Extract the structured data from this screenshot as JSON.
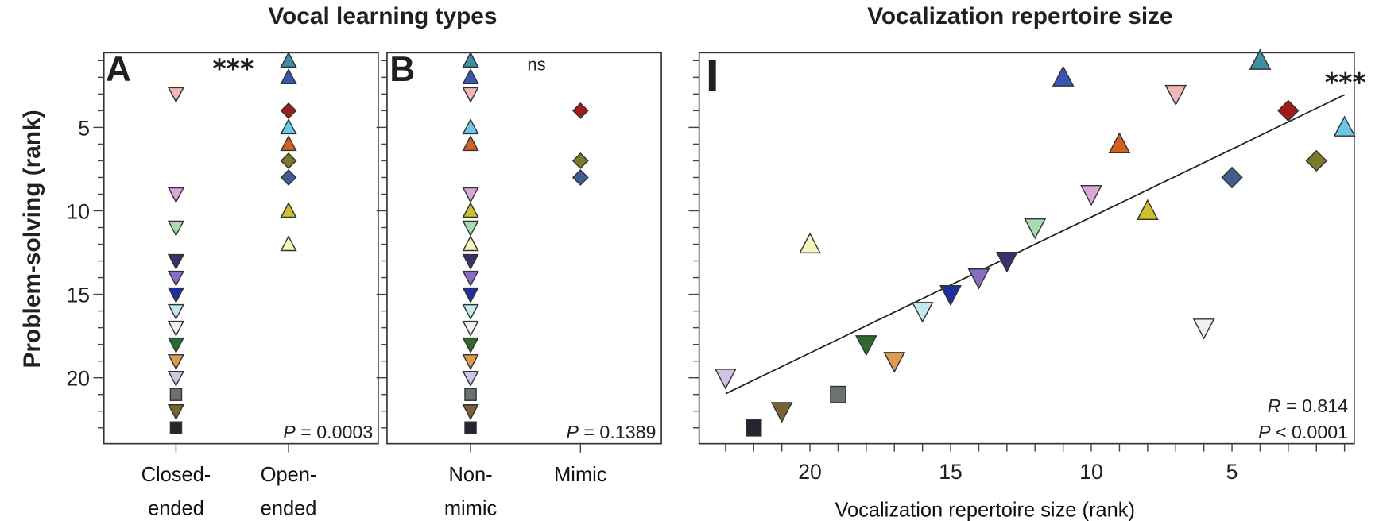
{
  "titles": {
    "left": "Vocal learning types",
    "right": "Vocalization repertoire size"
  },
  "y_axis_label": "Problem-solving (rank)",
  "chart_data": [
    {
      "panel": "A",
      "type": "scatter",
      "title": "Vocal learning types",
      "categories": [
        "Closed-ended",
        "Open-ended"
      ],
      "category_lines": [
        [
          "Closed-",
          "ended"
        ],
        [
          "Open-",
          "ended"
        ]
      ],
      "group_field": "vocal_type",
      "ylabel": "Problem-solving (rank)",
      "ylim": [
        1,
        23
      ],
      "y_reversed": true,
      "yticks": [
        5,
        10,
        15,
        20
      ],
      "significance": "***",
      "stat_label": "P",
      "stat_text": " = 0.0003"
    },
    {
      "panel": "B",
      "type": "scatter",
      "categories": [
        "Non-mimic",
        "Mimic"
      ],
      "category_lines": [
        [
          "Non-",
          "mimic"
        ],
        [
          "Mimic"
        ]
      ],
      "group_field": "mimicry",
      "ylim": [
        1,
        23
      ],
      "y_reversed": true,
      "significance": "ns",
      "stat_label": "P",
      "stat_text": " = 0.1389"
    },
    {
      "panel": "I",
      "type": "scatter",
      "title": "Vocalization repertoire size",
      "xlabel": "Vocalization repertoire size (rank)",
      "xlim": [
        23,
        1
      ],
      "x_reversed": true,
      "xticks": [
        20,
        15,
        10,
        5
      ],
      "ylim": [
        1,
        23
      ],
      "y_reversed": true,
      "trendline": "linear",
      "significance": "***",
      "r_label": "R",
      "r_text": " = 0.814",
      "p_label": "P",
      "p_text": " < 0.0001"
    }
  ],
  "species": [
    {
      "shape": "triangle-up",
      "color": "#3d8fa3",
      "vocal_type": "Open-ended",
      "mimicry": "Non-mimic",
      "problem_solving_rank": 1,
      "repertoire_rank": 4
    },
    {
      "shape": "triangle-up",
      "color": "#3a56b5",
      "vocal_type": "Open-ended",
      "mimicry": "Non-mimic",
      "problem_solving_rank": 2,
      "repertoire_rank": 11
    },
    {
      "shape": "triangle-down",
      "color": "#f2b8b8",
      "vocal_type": "Closed-ended",
      "mimicry": "Non-mimic",
      "problem_solving_rank": 3,
      "repertoire_rank": 7
    },
    {
      "shape": "diamond",
      "color": "#a01c1c",
      "vocal_type": "Open-ended",
      "mimicry": "Mimic",
      "problem_solving_rank": 4,
      "repertoire_rank": 3
    },
    {
      "shape": "triangle-up",
      "color": "#6cc8e8",
      "vocal_type": "Open-ended",
      "mimicry": "Non-mimic",
      "problem_solving_rank": 5,
      "repertoire_rank": 1
    },
    {
      "shape": "triangle-up",
      "color": "#d4601e",
      "vocal_type": "Open-ended",
      "mimicry": "Non-mimic",
      "problem_solving_rank": 6,
      "repertoire_rank": 9
    },
    {
      "shape": "diamond",
      "color": "#7a7a2a",
      "vocal_type": "Open-ended",
      "mimicry": "Mimic",
      "problem_solving_rank": 7,
      "repertoire_rank": 2
    },
    {
      "shape": "diamond",
      "color": "#3f5e8f",
      "vocal_type": "Open-ended",
      "mimicry": "Mimic",
      "problem_solving_rank": 8,
      "repertoire_rank": 5
    },
    {
      "shape": "triangle-down",
      "color": "#d9a8d9",
      "vocal_type": "Closed-ended",
      "mimicry": "Non-mimic",
      "problem_solving_rank": 9,
      "repertoire_rank": 10
    },
    {
      "shape": "triangle-up",
      "color": "#cdbf2d",
      "vocal_type": "Open-ended",
      "mimicry": "Non-mimic",
      "problem_solving_rank": 10,
      "repertoire_rank": 8
    },
    {
      "shape": "triangle-down",
      "color": "#a8dcb0",
      "vocal_type": "Closed-ended",
      "mimicry": "Non-mimic",
      "problem_solving_rank": 11,
      "repertoire_rank": 12
    },
    {
      "shape": "triangle-up",
      "color": "#f8f4bc",
      "vocal_type": "Open-ended",
      "mimicry": "Non-mimic",
      "problem_solving_rank": 12,
      "repertoire_rank": 20
    },
    {
      "shape": "triangle-down",
      "color": "#3d2f6b",
      "vocal_type": "Closed-ended",
      "mimicry": "Non-mimic",
      "problem_solving_rank": 13,
      "repertoire_rank": 13
    },
    {
      "shape": "triangle-down",
      "color": "#8a6cc4",
      "vocal_type": "Closed-ended",
      "mimicry": "Non-mimic",
      "problem_solving_rank": 14,
      "repertoire_rank": 14
    },
    {
      "shape": "triangle-down",
      "color": "#1f2f9e",
      "vocal_type": "Closed-ended",
      "mimicry": "Non-mimic",
      "problem_solving_rank": 15,
      "repertoire_rank": 15
    },
    {
      "shape": "triangle-down",
      "color": "#c0ecf0",
      "vocal_type": "Closed-ended",
      "mimicry": "Non-mimic",
      "problem_solving_rank": 16,
      "repertoire_rank": 16
    },
    {
      "shape": "triangle-down",
      "color": "#f0f0f0",
      "vocal_type": "Closed-ended",
      "mimicry": "Non-mimic",
      "problem_solving_rank": 17,
      "repertoire_rank": 6
    },
    {
      "shape": "triangle-down",
      "color": "#2d6a2d",
      "vocal_type": "Closed-ended",
      "mimicry": "Non-mimic",
      "problem_solving_rank": 18,
      "repertoire_rank": 18
    },
    {
      "shape": "triangle-down",
      "color": "#e09a50",
      "vocal_type": "Closed-ended",
      "mimicry": "Non-mimic",
      "problem_solving_rank": 19,
      "repertoire_rank": 17
    },
    {
      "shape": "triangle-down",
      "color": "#d0c4e4",
      "vocal_type": "Closed-ended",
      "mimicry": "Non-mimic",
      "problem_solving_rank": 20,
      "repertoire_rank": 23
    },
    {
      "shape": "square",
      "color": "#6a7272",
      "vocal_type": "Closed-ended",
      "mimicry": "Non-mimic",
      "problem_solving_rank": 21,
      "repertoire_rank": 19
    },
    {
      "shape": "triangle-down",
      "color": "#7a6235",
      "vocal_type": "Closed-ended",
      "mimicry": "Non-mimic",
      "problem_solving_rank": 22,
      "repertoire_rank": 21
    },
    {
      "shape": "square",
      "color": "#23262e",
      "vocal_type": "Closed-ended",
      "mimicry": "Non-mimic",
      "problem_solving_rank": 23,
      "repertoire_rank": 22
    }
  ]
}
